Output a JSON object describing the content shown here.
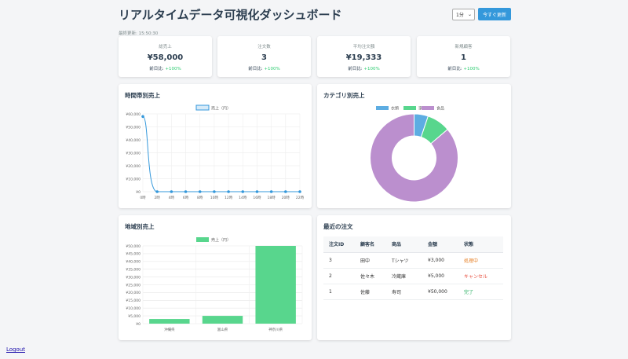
{
  "header": {
    "title": "リアルタイムデータ可視化ダッシュボード",
    "interval_value": "1分",
    "refresh_label": "今すぐ更新",
    "last_updated": "最終更新: 15:50:30"
  },
  "kpis": [
    {
      "label": "総売上",
      "value": "¥58,000",
      "delta_prefix": "前日比: ",
      "delta": "+100%"
    },
    {
      "label": "注文数",
      "value": "3",
      "delta_prefix": "前日比: ",
      "delta": "+100%"
    },
    {
      "label": "平均注文額",
      "value": "¥19,333",
      "delta_prefix": "前日比: ",
      "delta": "+100%"
    },
    {
      "label": "新規顧客",
      "value": "1",
      "delta_prefix": "前日比: ",
      "delta": "+100%"
    }
  ],
  "panels": {
    "hourly_title": "時間帯別売上",
    "category_title": "カテゴリ別売上",
    "region_title": "地域別売上",
    "orders_title": "最近の注文"
  },
  "chart_data": [
    {
      "type": "line",
      "title": "時間帯別売上",
      "legend": [
        "売上（円）"
      ],
      "legend_position": "top",
      "categories": [
        "0時",
        "2時",
        "4時",
        "6時",
        "8時",
        "10時",
        "12時",
        "14時",
        "16時",
        "18時",
        "20時",
        "22時"
      ],
      "series": [
        {
          "name": "売上（円）",
          "values": [
            58000,
            0,
            0,
            0,
            0,
            0,
            0,
            0,
            0,
            0,
            0,
            0
          ]
        }
      ],
      "y_ticks": [
        "¥0",
        "¥10,000",
        "¥20,000",
        "¥30,000",
        "¥40,000",
        "¥50,000",
        "¥60,000"
      ],
      "ylim": [
        0,
        60000
      ],
      "grid": true,
      "color": "#3498db"
    },
    {
      "type": "pie",
      "title": "カテゴリ別売上",
      "legend_position": "top",
      "categories": [
        "衣類",
        "家電",
        "食品"
      ],
      "values": [
        3000,
        5000,
        50000
      ],
      "colors": [
        "#5dade2",
        "#58d68d",
        "#bb8fce"
      ]
    },
    {
      "type": "bar",
      "title": "地域別売上",
      "legend": [
        "売上（円）"
      ],
      "legend_position": "top",
      "categories": [
        "沖縄県",
        "富山県",
        "神奈川県"
      ],
      "series": [
        {
          "name": "売上（円）",
          "values": [
            3000,
            5000,
            50000
          ]
        }
      ],
      "y_ticks": [
        "¥0",
        "¥5,000",
        "¥10,000",
        "¥15,000",
        "¥20,000",
        "¥25,000",
        "¥30,000",
        "¥35,000",
        "¥40,000",
        "¥45,000",
        "¥50,000"
      ],
      "ylim": [
        0,
        50000
      ],
      "grid": true,
      "color": "#58d68d"
    }
  ],
  "orders": {
    "columns": [
      "注文ID",
      "顧客名",
      "商品",
      "金額",
      "状態"
    ],
    "rows": [
      {
        "id": "3",
        "customer": "田中",
        "product": "Tシャツ",
        "amount": "¥3,000",
        "status": "処理中",
        "status_type": "warn"
      },
      {
        "id": "2",
        "customer": "佐々木",
        "product": "冷蔵庫",
        "amount": "¥5,000",
        "status": "キャンセル",
        "status_type": "danger"
      },
      {
        "id": "1",
        "customer": "佐藤",
        "product": "寿司",
        "amount": "¥50,000",
        "status": "完了",
        "status_type": "ok"
      }
    ]
  },
  "footer": {
    "logout_label": "Logout"
  }
}
